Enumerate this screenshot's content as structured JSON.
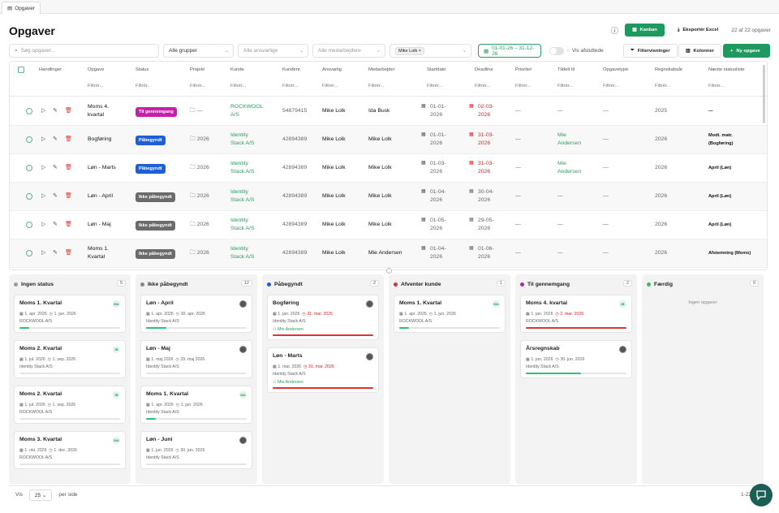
{
  "tab": {
    "label": "Opgaver"
  },
  "page_title": "Opgaver",
  "header": {
    "kanban": "Kanban",
    "export": "Eksportér Excel",
    "count": "22 af 22 opgaver"
  },
  "filters": {
    "search_placeholder": "Søg opgaver...",
    "groups": "Alle grupper",
    "responsible": "Alle ansvarlige",
    "employees": "Alle medarbejdere",
    "chip": "Mike Lolk ×",
    "daterange": "01-01-26 – 31-12-26",
    "show_completed": "Vis afsluttede",
    "filterviews": "Filtervisninger",
    "columns": "Kolonner",
    "new_task": "Ny opgave"
  },
  "table": {
    "headers": [
      "Handlinger",
      "Opgave",
      "Status",
      "Projekt",
      "Kunde",
      "Kundenr.",
      "Ansvarlig",
      "Medarbejder",
      "Startdato",
      "Deadline",
      "Prioritet",
      "Tildelt til",
      "Opgavetype",
      "Regnskabsår",
      "Næste statusliste"
    ],
    "filter_label": "Filtrér...",
    "rows": [
      {
        "task": [
          "Moms 4.",
          "kvartal"
        ],
        "status": "Til gennemgang",
        "status_color": "#c81fa8",
        "project": "—",
        "customer": [
          "ROCKWOOL",
          "A/S"
        ],
        "custno": "54879415",
        "resp": "Mike Lolk",
        "emp": "Ida Busk",
        "start": [
          "01-01-",
          "2026"
        ],
        "deadline": [
          "02-03-",
          "2026"
        ],
        "dl_red": true,
        "prio": "—",
        "assigned": [
          "—",
          ""
        ],
        "type": "—",
        "fy": "2025",
        "next": "—"
      },
      {
        "task": [
          "Bogføring",
          ""
        ],
        "status": "Påbegyndt",
        "status_color": "#1d5fd6",
        "project": "2026",
        "customer": [
          "Identity",
          "Stack A/S"
        ],
        "custno": "42894389",
        "resp": "Mike Lolk",
        "emp": "Mike Lolk",
        "start": [
          "01-01-",
          "2026"
        ],
        "deadline": [
          "31-03-",
          "2026"
        ],
        "dl_red": true,
        "prio": "—",
        "assigned": [
          "Mie",
          "Andersen"
        ],
        "type": "—",
        "fy": "2026",
        "next": "Modt. matr.\n(Bogføring)"
      },
      {
        "task": [
          "Løn - Marts",
          ""
        ],
        "status": "Påbegyndt",
        "status_color": "#1d5fd6",
        "project": "2026",
        "customer": [
          "Identity",
          "Stack A/S"
        ],
        "custno": "42894389",
        "resp": "Mike Lolk",
        "emp": "Mike Lolk",
        "start": [
          "01-03-",
          "2026"
        ],
        "deadline": [
          "31-03-",
          "2026"
        ],
        "dl_red": true,
        "prio": "—",
        "assigned": [
          "Mie",
          "Andersen"
        ],
        "type": "—",
        "fy": "2026",
        "next": "April (Løn)"
      },
      {
        "task": [
          "Løn - April",
          ""
        ],
        "status": "Ikke påbegyndt",
        "status_color": "#6b6b6b",
        "project": "2026",
        "customer": [
          "Identity",
          "Stack A/S"
        ],
        "custno": "42894389",
        "resp": "Mike Lolk",
        "emp": "Mike Lolk",
        "start": [
          "01-04-",
          "2026"
        ],
        "deadline": [
          "30-04-",
          "2026"
        ],
        "dl_red": false,
        "prio": "—",
        "assigned": [
          "—",
          ""
        ],
        "type": "—",
        "fy": "2026",
        "next": "April (Løn)"
      },
      {
        "task": [
          "Løn - Maj",
          ""
        ],
        "status": "Ikke påbegyndt",
        "status_color": "#6b6b6b",
        "project": "2026",
        "customer": [
          "Identity",
          "Stack A/S"
        ],
        "custno": "42894389",
        "resp": "Mike Lolk",
        "emp": "Mike Lolk",
        "start": [
          "01-05-",
          "2026"
        ],
        "deadline": [
          "29-05-",
          "2026"
        ],
        "dl_red": false,
        "prio": "—",
        "assigned": [
          "—",
          ""
        ],
        "type": "—",
        "fy": "2026",
        "next": "April (Løn)"
      },
      {
        "task": [
          "Moms 1.",
          "Kvartal"
        ],
        "status": "Ikke påbegyndt",
        "status_color": "#6b6b6b",
        "project": "2026",
        "customer": [
          "Identity",
          "Stack A/S"
        ],
        "custno": "42894389",
        "resp": "Mike Lolk",
        "emp": "Mie Andersen",
        "start": [
          "01-04-",
          "2026"
        ],
        "deadline": [
          "01-06-",
          "2026"
        ],
        "dl_red": false,
        "prio": "—",
        "assigned": [
          "—",
          ""
        ],
        "type": "—",
        "fy": "2026",
        "next": "Afstemning (Moms)"
      }
    ]
  },
  "kanban": {
    "empty_text": "Ingen opgaver",
    "columns": [
      {
        "name": "Ingen status",
        "count": "5",
        "color": "#999999",
        "cards": [
          {
            "title": "Moms 1. Kvartal",
            "start": "1. apr. 2026",
            "end": "1. jun. 2026",
            "red": false,
            "customer": "ROCKWOOL A/S",
            "assignee": "",
            "avatar": "MA",
            "progress": 0.1,
            "bar_color": "#2ec07a"
          },
          {
            "title": "Moms 2. Kvartal",
            "start": "1. jul. 2026",
            "end": "1. sep. 2026",
            "red": false,
            "customer": "Identity Stack A/S",
            "assignee": "",
            "avatar": "IB",
            "progress": 0,
            "bar_color": "#2ec07a"
          },
          {
            "title": "Moms 2. Kvartal",
            "start": "1. jul. 2026",
            "end": "1. sep. 2026",
            "red": false,
            "customer": "ROCKWOOL A/S",
            "assignee": "",
            "avatar": "IB",
            "progress": 0,
            "bar_color": "#2ec07a"
          },
          {
            "title": "Moms 3. Kvartal",
            "start": "1. okt. 2026",
            "end": "1. dec. 2026",
            "red": false,
            "customer": "ROCKWOOL A/S",
            "assignee": "",
            "avatar": "MA",
            "progress": 0,
            "bar_color": "#2ec07a"
          }
        ]
      },
      {
        "name": "Ikke påbegyndt",
        "count": "12",
        "color": "#888888",
        "cards": [
          {
            "title": "Løn - April",
            "start": "1. apr. 2026",
            "end": "30. apr. 2026",
            "red": false,
            "customer": "Identity Stack A/S",
            "assignee": "",
            "avatar": "ph",
            "progress": 0.2,
            "bar_color": "#2ec07a"
          },
          {
            "title": "Løn - Maj",
            "start": "1. maj 2026",
            "end": "29. maj 2026",
            "red": false,
            "customer": "Identity Stack A/S",
            "assignee": "",
            "avatar": "ph",
            "progress": 0,
            "bar_color": "#2ec07a"
          },
          {
            "title": "Moms 1. Kvartal",
            "start": "1. apr. 2026",
            "end": "1. jun. 2026",
            "red": false,
            "customer": "Identity Stack A/S",
            "assignee": "",
            "avatar": "MA",
            "progress": 0.1,
            "bar_color": "#2ec07a"
          },
          {
            "title": "Løn - Juni",
            "start": "1. jun. 2026",
            "end": "30. jun. 2026",
            "red": false,
            "customer": "Identity Stack A/S",
            "assignee": "",
            "avatar": "ph",
            "progress": 0,
            "bar_color": "#2ec07a"
          }
        ]
      },
      {
        "name": "Påbegyndt",
        "count": "2",
        "color": "#1d5fd6",
        "cards": [
          {
            "title": "Bogføring",
            "start": "1. jan. 2026",
            "end": "31. mar. 2026",
            "red": true,
            "customer": "Identity Stack A/S",
            "assignee": "Mie Andersen",
            "avatar": "ph",
            "progress": 1,
            "bar_color": "#d33"
          },
          {
            "title": "Løn - Marts",
            "start": "1. mar. 2026",
            "end": "31. mar. 2026",
            "red": true,
            "customer": "Identity Stack A/S",
            "assignee": "Mie Andersen",
            "avatar": "ph",
            "progress": 1,
            "bar_color": "#d33"
          }
        ]
      },
      {
        "name": "Afventer kunde",
        "count": "1",
        "color": "#d33333",
        "cards": [
          {
            "title": "Moms 1. Kvartal",
            "start": "1. apr. 2026",
            "end": "1. jun. 2026",
            "red": false,
            "customer": "ROCKWOOL A/S",
            "assignee": "",
            "avatar": "MA",
            "progress": 0.1,
            "bar_color": "#2ec07a"
          }
        ]
      },
      {
        "name": "Til gennemgang",
        "count": "2",
        "color": "#b022b8",
        "cards": [
          {
            "title": "Moms 4. kvartal",
            "start": "1. jan. 2026",
            "end": "2. mar. 2026",
            "red": true,
            "customer": "ROCKWOOL A/S",
            "assignee": "",
            "avatar": "IB",
            "progress": 1,
            "bar_color": "#d33"
          },
          {
            "title": "Årsregnskab",
            "start": "1. jun. 2026",
            "end": "30. jun. 2026",
            "red": false,
            "customer": "Identity Stack A/S",
            "assignee": "",
            "avatar": "ph",
            "progress": 0.55,
            "bar_color": "#2ec07a"
          }
        ]
      },
      {
        "name": "Færdig",
        "count": "0",
        "color": "#38c15a",
        "cards": []
      }
    ]
  },
  "footer": {
    "show": "Vis",
    "page_size": "25",
    "per_page": "per side",
    "pager": "1-22"
  }
}
